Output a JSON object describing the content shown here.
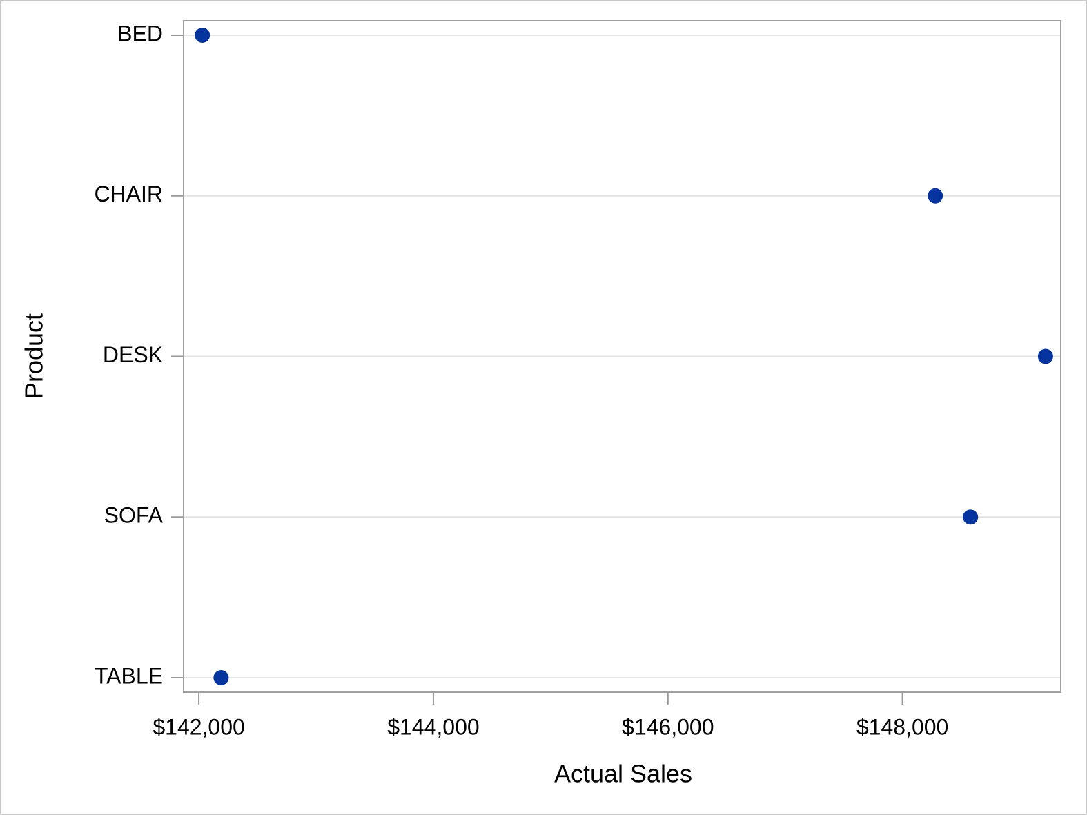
{
  "chart_data": {
    "type": "dot",
    "x_label": "Actual Sales",
    "y_label": "Product",
    "categories": [
      "BED",
      "CHAIR",
      "DESK",
      "SOFA",
      "TABLE"
    ],
    "values": [
      142030,
      148280,
      149220,
      148580,
      142190
    ],
    "color": "#05349e",
    "xlim": [
      141870,
      149350
    ],
    "xticks": [
      {
        "value": 142000,
        "label": "$142,000"
      },
      {
        "value": 144000,
        "label": "$144,000"
      },
      {
        "value": 146000,
        "label": "$146,000"
      },
      {
        "value": 148000,
        "label": "$148,000"
      }
    ],
    "grid": true
  }
}
